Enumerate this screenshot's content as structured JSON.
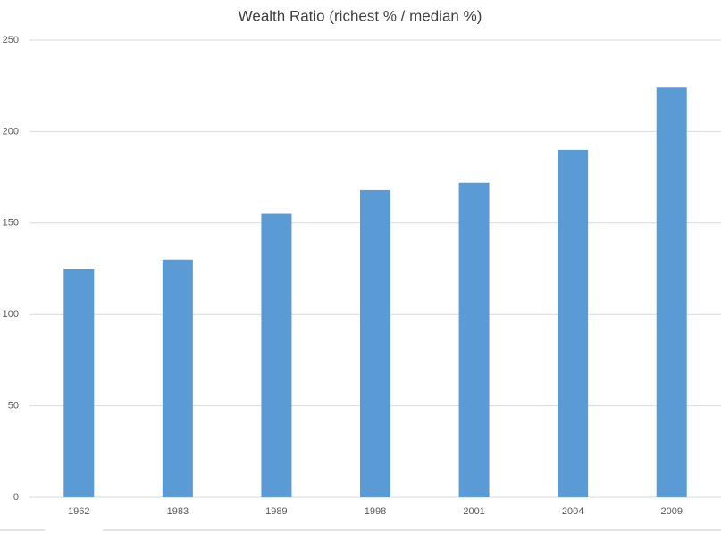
{
  "chart_data": {
    "type": "bar",
    "title": "Wealth Ratio (richest % / median %)",
    "categories": [
      "1962",
      "1983",
      "1989",
      "1998",
      "2001",
      "2004",
      "2009"
    ],
    "values": [
      125,
      130,
      155,
      168,
      172,
      190,
      224
    ],
    "color": "#5b9bd5",
    "ylim": [
      0,
      250
    ],
    "yticks": [
      0,
      50,
      100,
      150,
      200,
      250
    ],
    "grid": true
  }
}
